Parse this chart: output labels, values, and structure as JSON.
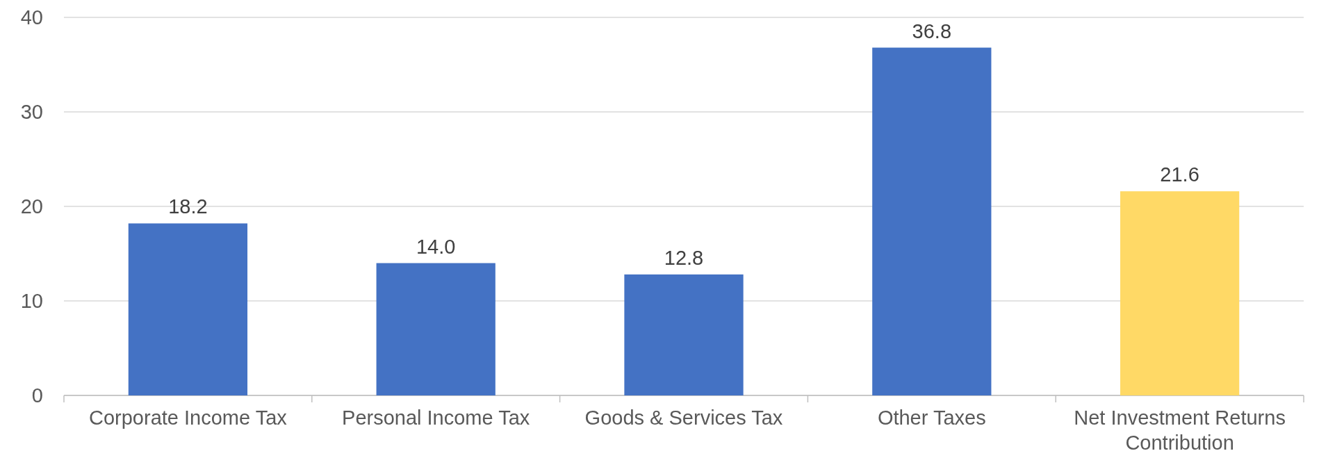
{
  "chart_data": {
    "type": "bar",
    "categories": [
      "Corporate Income Tax",
      "Personal Income Tax",
      "Goods & Services Tax",
      "Other Taxes",
      "Net Investment Returns Contribution"
    ],
    "values": [
      18.2,
      14.0,
      12.8,
      36.8,
      21.6
    ],
    "colors": [
      "#4472c4",
      "#4472c4",
      "#4472c4",
      "#4472c4",
      "#ffd966"
    ],
    "value_labels": [
      "18.2",
      "14.0",
      "12.8",
      "36.8",
      "21.6"
    ],
    "ylim": [
      0,
      40
    ],
    "yticks": [
      0,
      10,
      20,
      30,
      40
    ],
    "grid": "y"
  }
}
